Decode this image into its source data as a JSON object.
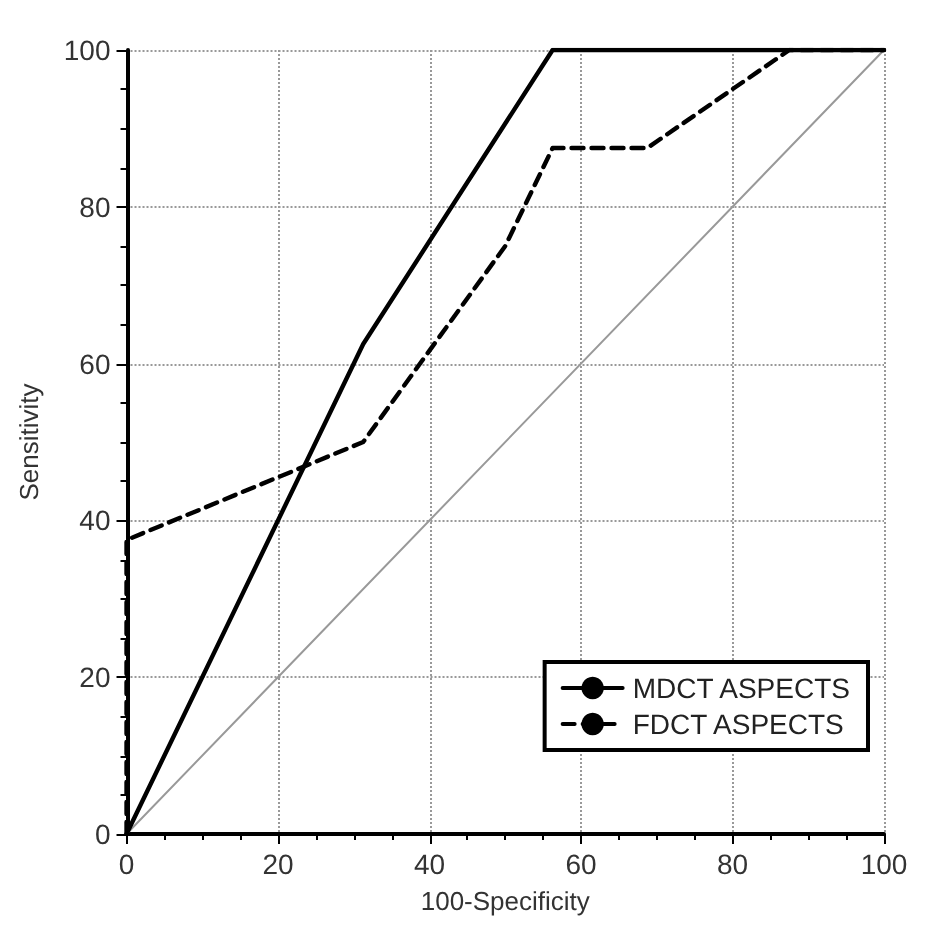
{
  "chart_data": {
    "type": "line",
    "xlabel": "100-Specificity",
    "ylabel": "Sensitivity",
    "xlim": [
      0,
      100
    ],
    "ylim": [
      0,
      100
    ],
    "xticks": [
      0,
      20,
      40,
      60,
      80,
      100
    ],
    "yticks": [
      0,
      20,
      40,
      60,
      80,
      100
    ],
    "grid": true,
    "legend": "bottom right",
    "marker": "none",
    "series": [
      {
        "name": "MDCT ASPECTS",
        "color": "#000000",
        "line_style": "solid",
        "x": [
          0,
          31.25,
          56.25,
          100
        ],
        "values": [
          0,
          62.5,
          100,
          100
        ]
      },
      {
        "name": "FDCT ASPECTS",
        "color": "#000000",
        "line_style": "dashed",
        "x": [
          0,
          0,
          31.25,
          50,
          56.25,
          68.75,
          87.5,
          100
        ],
        "values": [
          0,
          37.5,
          50,
          75,
          87.5,
          87.5,
          100,
          100
        ]
      },
      {
        "color": "#999999",
        "line_style": "solid",
        "x": [
          0,
          100
        ],
        "values": [
          0,
          100
        ]
      }
    ]
  }
}
